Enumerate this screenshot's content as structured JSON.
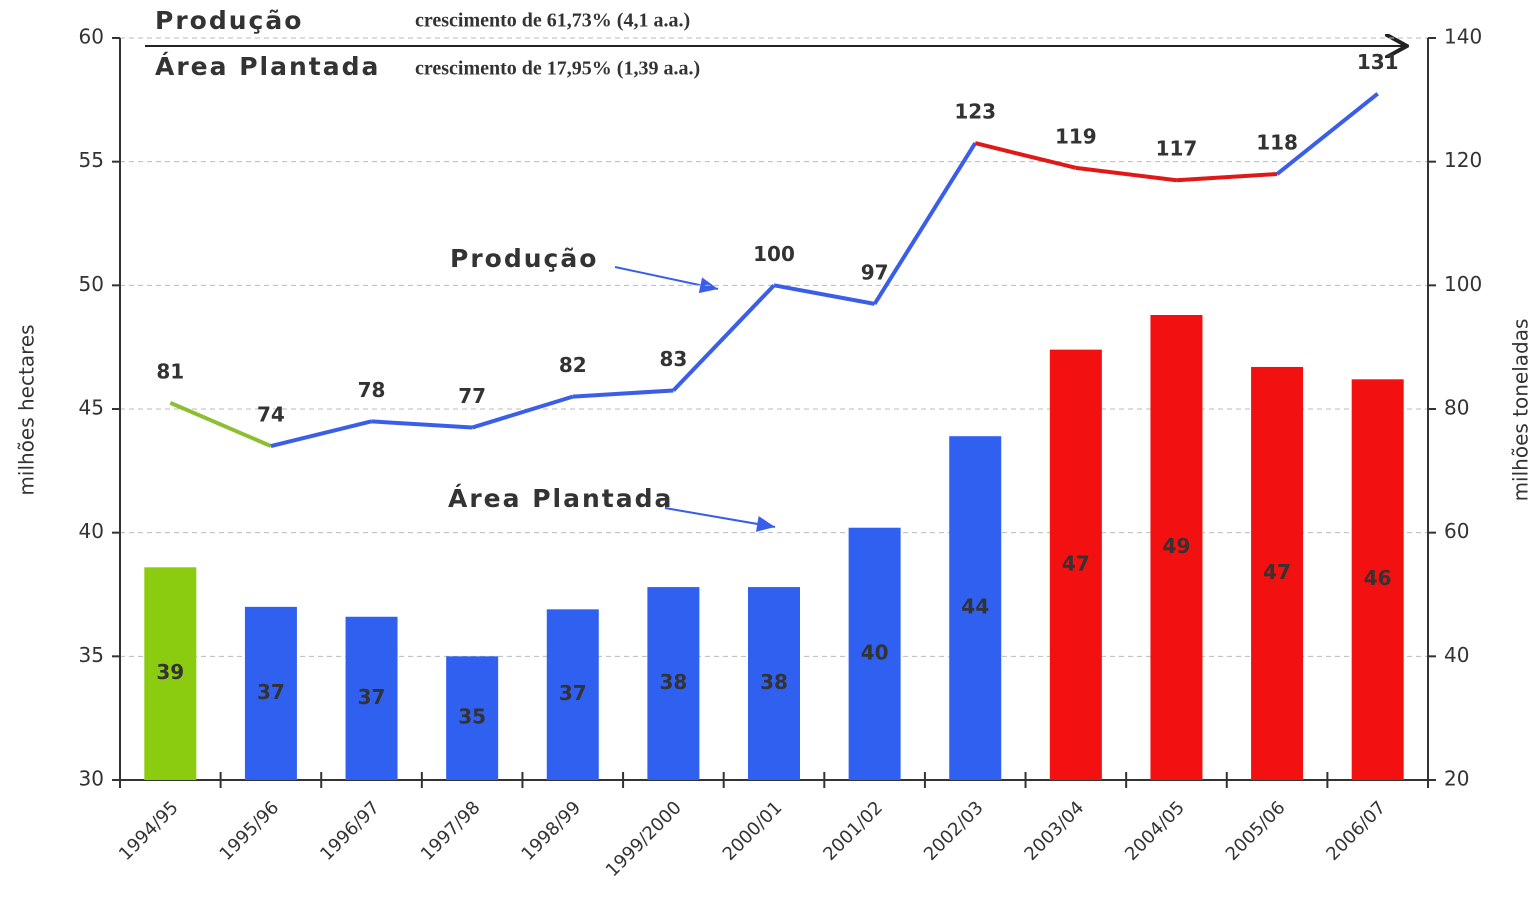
{
  "chart_data": {
    "type": "combo",
    "categories": [
      "1994/95",
      "1995/96",
      "1996/97",
      "1997/98",
      "1998/99",
      "1999/2000",
      "2000/01",
      "2001/02",
      "2002/03",
      "2003/04",
      "2004/05",
      "2005/06",
      "2006/07"
    ],
    "annotations": [
      "crescimento de 61,73% (4,1 a.a.)",
      "crescimento de 17,95% (1,39 a.a.)"
    ],
    "annotation_colors": [
      "#4a4acc",
      "#d42020"
    ],
    "series": [
      {
        "name": "Área Plantada",
        "type": "bar",
        "axis": "y",
        "color": "#3060f0",
        "values": [
          38.6,
          37.0,
          36.6,
          35.0,
          36.9,
          37.8,
          37.8,
          40.2,
          43.9,
          47.4,
          48.8,
          46.7,
          46.2
        ],
        "value_labels": [
          "39",
          "37",
          "37",
          "35",
          "37",
          "38",
          "38",
          "40",
          "44",
          "47",
          "49",
          "47",
          "46"
        ],
        "colors": [
          "#8ccc10",
          "#3060f0",
          "#3060f0",
          "#3060f0",
          "#3060f0",
          "#3060f0",
          "#3060f0",
          "#3060f0",
          "#3060f0",
          "#f21010",
          "#f21010",
          "#f21010",
          "#f21010"
        ]
      },
      {
        "name": "Produção",
        "type": "line",
        "axis": "y2",
        "color": "#3a5ee8",
        "values": [
          81,
          74,
          78,
          77,
          82,
          83,
          100,
          97,
          123,
          119,
          117,
          118,
          131
        ],
        "label_colors": [
          "#8cbf30",
          "#3a5ee8",
          "#3a5ee8",
          "#3a5ee8",
          "#3a5ee8",
          "#3a5ee8",
          "#3a5ee8",
          "#3a5ee8",
          "#3a5ee8",
          "#d42020",
          "#d42020",
          "#d42020",
          "#3a5ee8"
        ],
        "segment_colors": [
          "#8cbf30",
          "#3a5ee8",
          "#3a5ee8",
          "#3a5ee8",
          "#3a5ee8",
          "#3a5ee8",
          "#3a5ee8",
          "#3a5ee8",
          "#e01818",
          "#e01818",
          "#e01818",
          "#3a5ee8"
        ]
      }
    ],
    "ylabel": "milhões hectares",
    "y2label": "milhões toneladas",
    "ylim": [
      30,
      60
    ],
    "yticks": [
      30,
      35,
      40,
      45,
      50,
      55,
      60
    ],
    "y2lim": [
      20,
      140
    ],
    "y2ticks": [
      20,
      40,
      60,
      80,
      100,
      120,
      140
    ],
    "grid": true
  }
}
